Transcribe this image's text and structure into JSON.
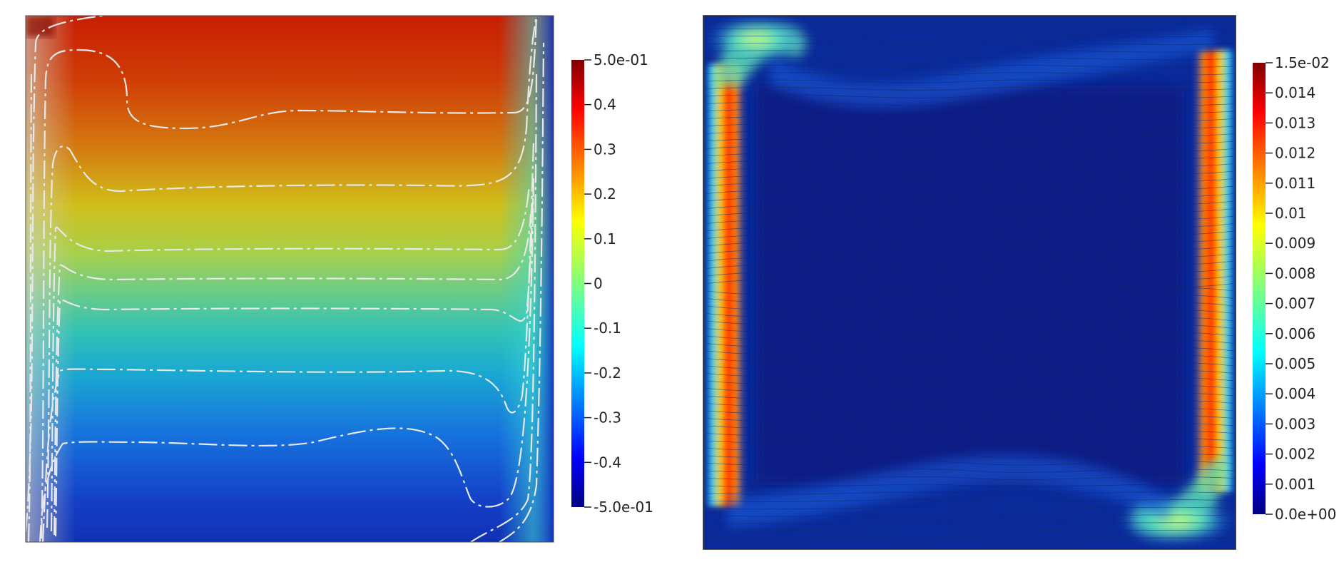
{
  "panels": [
    {
      "id": "left",
      "description": "",
      "colormap": "jet",
      "colorbar": {
        "range": [
          -0.5,
          0.5
        ],
        "ticks": [
          {
            "value": 0.5,
            "label": "5.0e-01"
          },
          {
            "value": 0.4,
            "label": "0.4"
          },
          {
            "value": 0.3,
            "label": "0.3"
          },
          {
            "value": 0.2,
            "label": "0.2"
          },
          {
            "value": 0.1,
            "label": "0.1"
          },
          {
            "value": 0.0,
            "label": "0"
          },
          {
            "value": -0.1,
            "label": "-0.1"
          },
          {
            "value": -0.2,
            "label": "-0.2"
          },
          {
            "value": -0.3,
            "label": "-0.3"
          },
          {
            "value": -0.4,
            "label": "-0.4"
          },
          {
            "value": -0.5,
            "label": "-5.0e-01"
          }
        ]
      },
      "contour_color": "#e6e6e6"
    },
    {
      "id": "right",
      "colormap": "jet",
      "colorbar": {
        "range": [
          0.0,
          0.015
        ],
        "ticks": [
          {
            "value": 0.015,
            "label": "1.5e-02"
          },
          {
            "value": 0.014,
            "label": "0.014"
          },
          {
            "value": 0.013,
            "label": "0.013"
          },
          {
            "value": 0.012,
            "label": "0.012"
          },
          {
            "value": 0.011,
            "label": "0.011"
          },
          {
            "value": 0.01,
            "label": "0.01"
          },
          {
            "value": 0.009,
            "label": "0.009"
          },
          {
            "value": 0.008,
            "label": "0.008"
          },
          {
            "value": 0.007,
            "label": "0.007"
          },
          {
            "value": 0.006,
            "label": "0.006"
          },
          {
            "value": 0.005,
            "label": "0.005"
          },
          {
            "value": 0.004,
            "label": "0.004"
          },
          {
            "value": 0.003,
            "label": "0.003"
          },
          {
            "value": 0.002,
            "label": "0.002"
          },
          {
            "value": 0.001,
            "label": "0.001"
          },
          {
            "value": 0.0,
            "label": "0.0e+00"
          }
        ]
      },
      "streamline_color": "#0a2a7a"
    }
  ]
}
